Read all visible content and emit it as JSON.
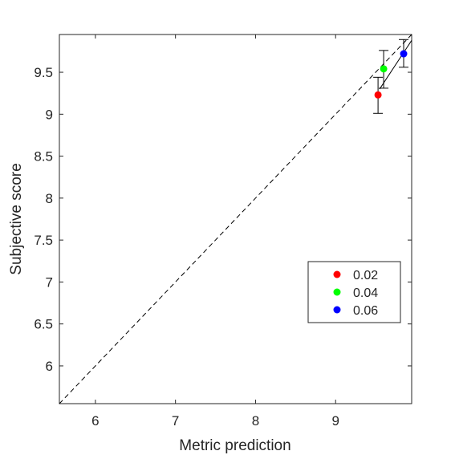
{
  "chart_data": {
    "type": "scatter",
    "title": "",
    "xlabel": "Metric prediction",
    "ylabel": "Subjective score",
    "xlim": [
      5.55,
      9.95
    ],
    "ylim": [
      5.55,
      9.95
    ],
    "xticks": [
      6,
      7,
      8,
      9
    ],
    "yticks": [
      6,
      6.5,
      7,
      7.5,
      8,
      8.5,
      9,
      9.5
    ],
    "xtick_labels": [
      "6",
      "7",
      "8",
      "9"
    ],
    "ytick_labels": [
      "6",
      "6.5",
      "7",
      "7.5",
      "8",
      "8.5",
      "9",
      "9.5"
    ],
    "grid": false,
    "legend_position": "lower-right",
    "reference_line": {
      "style": "dashed",
      "from": [
        5.55,
        5.55
      ],
      "to": [
        9.95,
        9.95
      ]
    },
    "fit_line": {
      "style": "solid",
      "from": [
        9.55,
        9.3
      ],
      "to": [
        9.95,
        9.88
      ]
    },
    "series": [
      {
        "name": "0.02",
        "color": "#ff0000",
        "x": 9.53,
        "y": 9.23,
        "err_low": 9.01,
        "err_high": 9.44
      },
      {
        "name": "0.04",
        "color": "#00ff00",
        "x": 9.6,
        "y": 9.54,
        "err_low": 9.31,
        "err_high": 9.76
      },
      {
        "name": "0.06",
        "color": "#0000ff",
        "x": 9.85,
        "y": 9.72,
        "err_low": 9.56,
        "err_high": 9.89
      }
    ]
  }
}
